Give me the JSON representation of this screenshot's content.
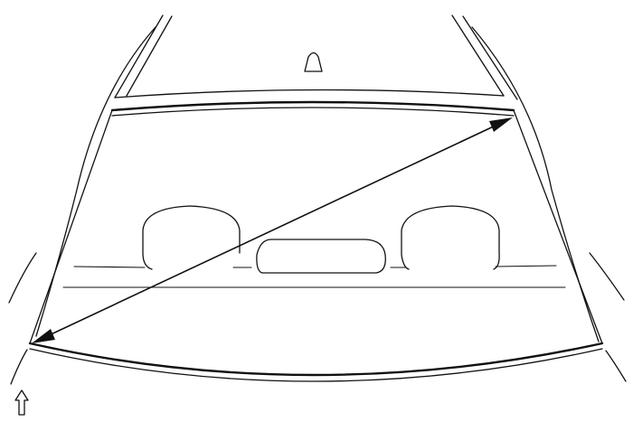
{
  "diagram": {
    "subject": "rear-window-glass",
    "icons": {
      "antenna": "antenna-icon",
      "front_indicator": "up-arrow-outline-icon",
      "measurement": "double-headed-arrow-icon"
    },
    "colors": {
      "line": "#111111",
      "background": "#ffffff"
    }
  }
}
